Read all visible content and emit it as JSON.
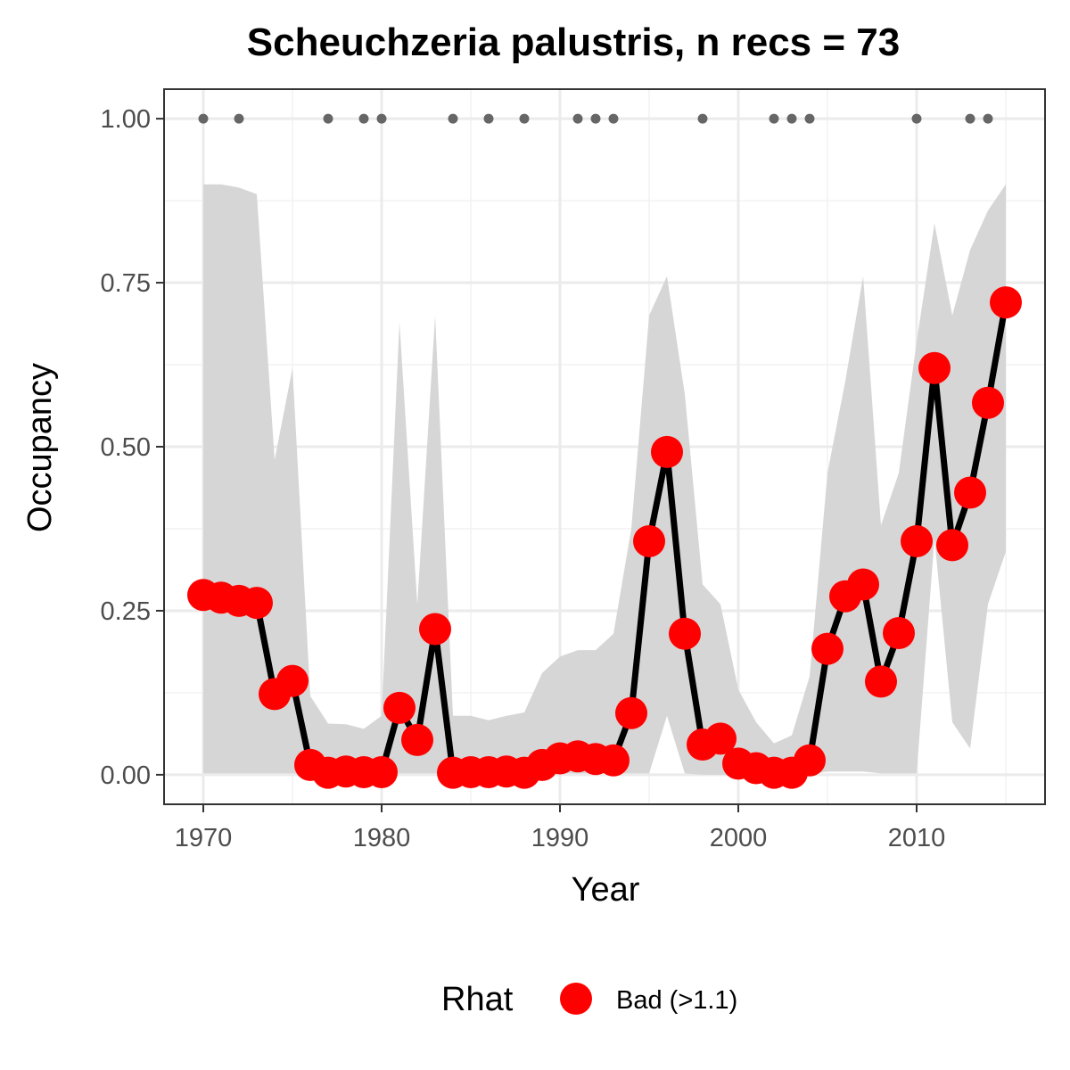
{
  "chart_data": {
    "type": "line",
    "title": "Scheuchzeria palustris, n recs = 73",
    "xlabel": "Year",
    "ylabel": "Occupancy",
    "xlim": [
      1967.8,
      2017.2
    ],
    "ylim": [
      -0.045,
      1.045
    ],
    "x_ticks": [
      1970,
      1980,
      1990,
      2000,
      2010
    ],
    "x_tick_labels": [
      "1970",
      "1980",
      "1990",
      "2000",
      "2010"
    ],
    "y_ticks": [
      0,
      0.25,
      0.5,
      0.75,
      1
    ],
    "y_tick_labels": [
      "0.00",
      "0.25",
      "0.50",
      "0.75",
      "1.00"
    ],
    "grid": true,
    "series": [
      {
        "type": "line_points",
        "color": "#000000",
        "point_color": "#ff0000",
        "x": [
          1970,
          1971,
          1972,
          1973,
          1974,
          1975,
          1976,
          1977,
          1978,
          1979,
          1980,
          1981,
          1982,
          1983,
          1984,
          1985,
          1986,
          1987,
          1988,
          1989,
          1990,
          1991,
          1992,
          1993,
          1994,
          1995,
          1996,
          1997,
          1998,
          1999,
          2000,
          2001,
          2002,
          2003,
          2004,
          2005,
          2006,
          2007,
          2008,
          2009,
          2010,
          2011,
          2012,
          2013,
          2014,
          2015
        ],
        "y": [
          0.274,
          0.27,
          0.265,
          0.262,
          0.123,
          0.143,
          0.015,
          0.003,
          0.005,
          0.004,
          0.004,
          0.102,
          0.053,
          0.222,
          0.003,
          0.004,
          0.004,
          0.005,
          0.003,
          0.015,
          0.025,
          0.028,
          0.024,
          0.022,
          0.094,
          0.356,
          0.492,
          0.215,
          0.046,
          0.055,
          0.017,
          0.01,
          0.003,
          0.003,
          0.022,
          0.192,
          0.272,
          0.29,
          0.142,
          0.216,
          0.356,
          0.62,
          0.35,
          0.43,
          0.567,
          0.72
        ]
      }
    ],
    "ribbon": {
      "color": "#d6d6d6",
      "x": [
        1970,
        1971,
        1972,
        1973,
        1974,
        1975,
        1976,
        1977,
        1978,
        1979,
        1980,
        1981,
        1982,
        1983,
        1984,
        1985,
        1986,
        1987,
        1988,
        1989,
        1990,
        1991,
        1992,
        1993,
        1994,
        1995,
        1996,
        1997,
        1998,
        1999,
        2000,
        2001,
        2002,
        2003,
        2004,
        2005,
        2006,
        2007,
        2008,
        2009,
        2010,
        2011,
        2012,
        2013,
        2014,
        2015
      ],
      "lower": [
        0.002,
        0.002,
        0.002,
        0.002,
        0.002,
        0.002,
        0.0,
        0.0,
        0.0,
        0.0,
        0.002,
        0.002,
        0.002,
        0.002,
        0.0,
        0.0,
        0.0,
        0.0,
        0.0,
        0.002,
        0.002,
        0.002,
        0.002,
        0.002,
        0.002,
        0.002,
        0.09,
        0.002,
        0.0,
        0.0,
        0.0,
        0.0,
        0.0,
        0.0,
        0.0,
        0.005,
        0.005,
        0.005,
        0.002,
        0.002,
        0.002,
        0.36,
        0.08,
        0.04,
        0.26,
        0.34
      ],
      "upper": [
        0.9,
        0.9,
        0.895,
        0.885,
        0.48,
        0.62,
        0.12,
        0.078,
        0.077,
        0.07,
        0.09,
        0.69,
        0.26,
        0.7,
        0.09,
        0.09,
        0.083,
        0.09,
        0.095,
        0.155,
        0.18,
        0.19,
        0.19,
        0.215,
        0.375,
        0.7,
        0.76,
        0.58,
        0.29,
        0.26,
        0.13,
        0.08,
        0.048,
        0.06,
        0.15,
        0.46,
        0.6,
        0.76,
        0.38,
        0.46,
        0.66,
        0.84,
        0.7,
        0.8,
        0.86,
        0.9
      ]
    },
    "records": {
      "color": "#666666",
      "x": [
        1970,
        1972,
        1977,
        1979,
        1980,
        1984,
        1986,
        1988,
        1991,
        1992,
        1993,
        1998,
        2002,
        2003,
        2004,
        2010,
        2013,
        2014
      ],
      "y": [
        1,
        1,
        1,
        1,
        1,
        1,
        1,
        1,
        1,
        1,
        1,
        1,
        1,
        1,
        1,
        1,
        1,
        1
      ]
    },
    "legend": {
      "position": "bottom",
      "title": "Rhat",
      "entries": [
        {
          "label": "Bad (>1.1)",
          "color": "#ff0000"
        }
      ]
    }
  }
}
